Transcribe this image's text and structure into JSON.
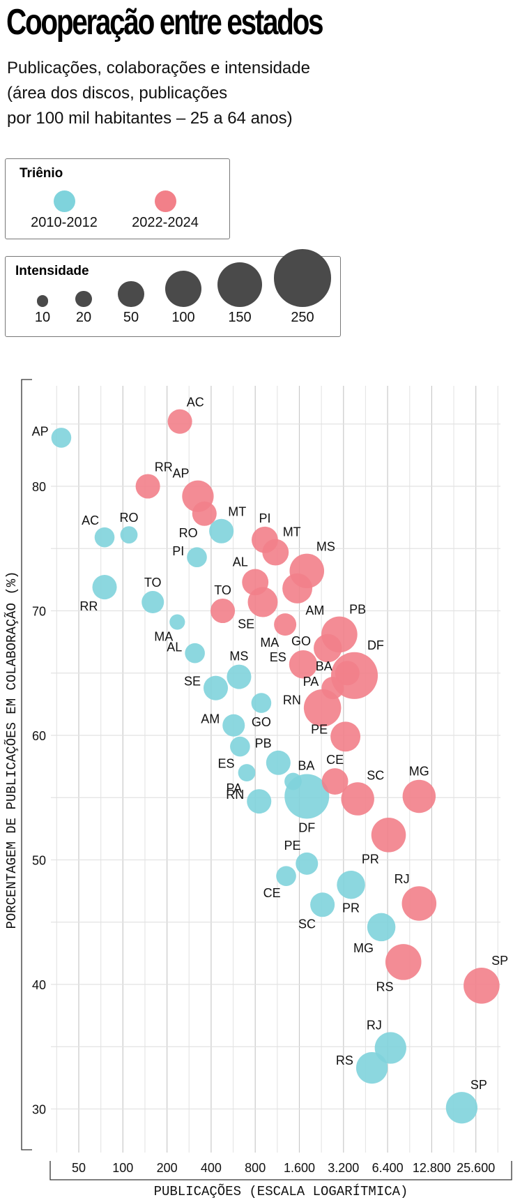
{
  "header": {
    "title": "Cooperação entre estados",
    "subtitle_lines": [
      "Publicações, colaborações e intensidade",
      "(área dos discos, publicações",
      "por 100 mil habitantes – 25 a 64 anos)"
    ]
  },
  "legend_period": {
    "title": "Triênio",
    "items": [
      {
        "label": "2010-2012",
        "color": "#7fd3dc"
      },
      {
        "label": "2022-2024",
        "color": "#f28089"
      }
    ]
  },
  "legend_intensity": {
    "title": "Intensidade",
    "items": [
      {
        "label": "10",
        "value": 10
      },
      {
        "label": "20",
        "value": 20
      },
      {
        "label": "50",
        "value": 50
      },
      {
        "label": "100",
        "value": 100
      },
      {
        "label": "150",
        "value": 150
      },
      {
        "label": "250",
        "value": 250
      }
    ],
    "color": "#4a4a4a"
  },
  "chart_data": {
    "type": "scatter",
    "title": "Cooperação entre estados",
    "xlabel": "PUBLICAÇÕES (ESCALA LOGARÍTMICA)",
    "ylabel": "PORCENTAGEM DE PUBLICAÇÕES EM COLABORAÇÃO (%)",
    "xscale": "log2",
    "xlim": [
      35,
      36000
    ],
    "ylim": [
      27,
      85
    ],
    "x_ticks": [
      50,
      100,
      200,
      400,
      800,
      1600,
      3200,
      6400,
      12800,
      25600
    ],
    "x_tick_labels": [
      "50",
      "100",
      "200",
      "400",
      "800",
      "1.600",
      "3.200",
      "6.400",
      "12.800",
      "25.600"
    ],
    "y_ticks": [
      30,
      40,
      50,
      60,
      70,
      80
    ],
    "y_tick_labels": [
      "30",
      "40",
      "50",
      "60",
      "70",
      "80"
    ],
    "grid": true,
    "legend_position": "top-left",
    "size_encoding": "intensidade (publicações por 100 mil habitantes, 25 a 64 anos)",
    "series": [
      {
        "name": "2010-2012",
        "color": "#7fd3dc",
        "points": [
          {
            "state": "AP",
            "x": 38,
            "y": 83.9,
            "size": 20,
            "label_pos": "left"
          },
          {
            "state": "AC",
            "x": 75,
            "y": 75.9,
            "size": 20,
            "label_pos": "top-left"
          },
          {
            "state": "RO",
            "x": 110,
            "y": 76.1,
            "size": 15,
            "label_pos": "top"
          },
          {
            "state": "RR",
            "x": 75,
            "y": 71.9,
            "size": 30,
            "label_pos": "bottom-left"
          },
          {
            "state": "TO",
            "x": 160,
            "y": 70.7,
            "size": 25,
            "label_pos": "top"
          },
          {
            "state": "MA",
            "x": 235,
            "y": 69.1,
            "size": 12,
            "label_pos": "bottom-left"
          },
          {
            "state": "MT",
            "x": 470,
            "y": 76.4,
            "size": 30,
            "label_pos": "top-right"
          },
          {
            "state": "PI",
            "x": 320,
            "y": 74.3,
            "size": 20,
            "label_pos": "left"
          },
          {
            "state": "AL",
            "x": 310,
            "y": 66.6,
            "size": 20,
            "label_pos": "left"
          },
          {
            "state": "SE",
            "x": 430,
            "y": 63.8,
            "size": 30,
            "label_pos": "left"
          },
          {
            "state": "MS",
            "x": 620,
            "y": 64.7,
            "size": 30,
            "label_pos": "top"
          },
          {
            "state": "GO",
            "x": 880,
            "y": 62.6,
            "size": 20,
            "label_pos": "bottom"
          },
          {
            "state": "AM",
            "x": 570,
            "y": 60.8,
            "size": 25,
            "label_pos": "left"
          },
          {
            "state": "ES",
            "x": 630,
            "y": 59.1,
            "size": 20,
            "label_pos": "bottom-left"
          },
          {
            "state": "PA",
            "x": 700,
            "y": 57.0,
            "size": 15,
            "label_pos": "bottom-left"
          },
          {
            "state": "PB",
            "x": 1150,
            "y": 57.8,
            "size": 30,
            "label_pos": "top-left"
          },
          {
            "state": "BA",
            "x": 1450,
            "y": 56.3,
            "size": 15,
            "label_pos": "top-right"
          },
          {
            "state": "RN",
            "x": 850,
            "y": 54.7,
            "size": 30,
            "label_pos": "left"
          },
          {
            "state": "DF",
            "x": 1800,
            "y": 55.1,
            "size": 100,
            "label_pos": "bottom"
          },
          {
            "state": "PE",
            "x": 1800,
            "y": 49.7,
            "size": 25,
            "label_pos": "top-left"
          },
          {
            "state": "CE",
            "x": 1300,
            "y": 48.7,
            "size": 20,
            "label_pos": "bottom-left"
          },
          {
            "state": "SC",
            "x": 2300,
            "y": 46.4,
            "size": 30,
            "label_pos": "bottom-left"
          },
          {
            "state": "PR",
            "x": 3600,
            "y": 48.0,
            "size": 40,
            "label_pos": "bottom"
          },
          {
            "state": "MG",
            "x": 5800,
            "y": 44.6,
            "size": 40,
            "label_pos": "bottom-left"
          },
          {
            "state": "RJ",
            "x": 6700,
            "y": 34.9,
            "size": 50,
            "label_pos": "top-left"
          },
          {
            "state": "RS",
            "x": 5000,
            "y": 33.3,
            "size": 50,
            "label_pos": "left"
          },
          {
            "state": "SP",
            "x": 20500,
            "y": 30.1,
            "size": 50,
            "label_pos": "top-right"
          }
        ]
      },
      {
        "name": "2022-2024",
        "color": "#f28089",
        "points": [
          {
            "state": "AC",
            "x": 245,
            "y": 85.2,
            "size": 30,
            "label_pos": "top-right"
          },
          {
            "state": "RR",
            "x": 148,
            "y": 80.0,
            "size": 30,
            "label_pos": "top-right"
          },
          {
            "state": "AP",
            "x": 325,
            "y": 79.2,
            "size": 50,
            "label_pos": "top-left"
          },
          {
            "state": "RO",
            "x": 360,
            "y": 77.8,
            "size": 30,
            "label_pos": "bottom-left"
          },
          {
            "state": "TO",
            "x": 480,
            "y": 70.0,
            "size": 30,
            "label_pos": "top"
          },
          {
            "state": "PI",
            "x": 930,
            "y": 75.7,
            "size": 35,
            "label_pos": "top"
          },
          {
            "state": "MT",
            "x": 1100,
            "y": 74.7,
            "size": 35,
            "label_pos": "top-right"
          },
          {
            "state": "AL",
            "x": 800,
            "y": 72.3,
            "size": 35,
            "label_pos": "top-left"
          },
          {
            "state": "SE",
            "x": 900,
            "y": 70.7,
            "size": 45,
            "label_pos": "bottom-left"
          },
          {
            "state": "MS",
            "x": 1800,
            "y": 73.2,
            "size": 60,
            "label_pos": "top-right"
          },
          {
            "state": "AM",
            "x": 1550,
            "y": 71.8,
            "size": 45,
            "label_pos": "bottom-right"
          },
          {
            "state": "MA",
            "x": 1280,
            "y": 68.9,
            "size": 25,
            "label_pos": "bottom-left"
          },
          {
            "state": "PB",
            "x": 3000,
            "y": 68.1,
            "size": 65,
            "label_pos": "top-right"
          },
          {
            "state": "GO",
            "x": 2500,
            "y": 67.0,
            "size": 40,
            "label_pos": "left"
          },
          {
            "state": "ES",
            "x": 1700,
            "y": 65.7,
            "size": 40,
            "label_pos": "left"
          },
          {
            "state": "BA",
            "x": 3400,
            "y": 65.0,
            "size": 30,
            "label_pos": "left"
          },
          {
            "state": "DF",
            "x": 3800,
            "y": 64.8,
            "size": 110,
            "label_pos": "top-right"
          },
          {
            "state": "PA",
            "x": 2700,
            "y": 63.8,
            "size": 25,
            "label_pos": "left"
          },
          {
            "state": "RN",
            "x": 2300,
            "y": 62.2,
            "size": 70,
            "label_pos": "left"
          },
          {
            "state": "PE",
            "x": 3300,
            "y": 59.9,
            "size": 45,
            "label_pos": "left"
          },
          {
            "state": "CE",
            "x": 2800,
            "y": 56.3,
            "size": 35,
            "label_pos": "top"
          },
          {
            "state": "SC",
            "x": 4000,
            "y": 54.9,
            "size": 55,
            "label_pos": "top-right"
          },
          {
            "state": "MG",
            "x": 10500,
            "y": 55.1,
            "size": 55,
            "label_pos": "top"
          },
          {
            "state": "PR",
            "x": 6500,
            "y": 52.0,
            "size": 60,
            "label_pos": "bottom-left"
          },
          {
            "state": "RJ",
            "x": 10500,
            "y": 46.5,
            "size": 60,
            "label_pos": "top-left"
          },
          {
            "state": "RS",
            "x": 8200,
            "y": 41.8,
            "size": 65,
            "label_pos": "bottom-left"
          },
          {
            "state": "SP",
            "x": 28000,
            "y": 39.9,
            "size": 65,
            "label_pos": "top-right"
          }
        ]
      }
    ]
  }
}
